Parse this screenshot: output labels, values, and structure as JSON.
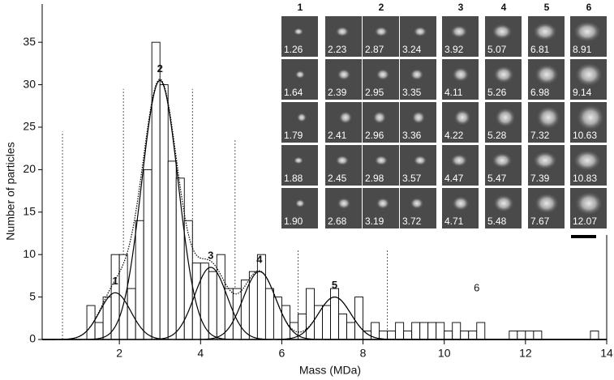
{
  "chart_data": {
    "type": "histogram",
    "xlabel": "Mass (MDa)",
    "ylabel": "Number of particles",
    "bins": [
      1.2,
      1.4,
      1.6,
      1.8,
      2.0,
      2.2,
      2.4,
      2.6,
      2.8,
      3.0,
      3.2,
      3.4,
      3.6,
      3.8,
      4.0,
      4.2,
      4.4,
      4.6,
      4.8,
      5.0,
      5.2,
      5.4,
      5.6,
      5.8,
      6.0,
      6.2,
      6.4,
      6.6,
      6.8,
      7.0,
      7.2,
      7.4,
      7.6,
      7.8,
      8.0,
      8.2,
      8.4,
      8.6,
      8.8,
      9.0,
      9.2,
      9.4,
      9.6,
      9.8,
      10.0,
      10.2,
      10.4,
      10.6,
      10.8,
      11.0,
      11.2,
      11.4,
      11.6,
      11.8,
      12.0,
      12.2,
      12.4,
      12.6,
      12.8,
      13.0,
      13.2,
      13.4,
      13.6,
      13.8
    ],
    "counts": [
      4,
      2,
      5,
      10,
      10,
      6,
      14,
      20,
      35,
      30,
      21,
      19,
      14,
      9,
      9,
      8,
      10,
      6,
      6,
      7,
      8,
      10,
      6,
      5,
      4,
      2,
      3,
      6,
      4,
      4,
      6,
      3,
      2,
      5,
      1,
      2,
      1,
      1,
      2,
      1,
      2,
      2,
      2,
      2,
      1,
      2,
      1,
      1,
      2,
      0,
      0,
      0,
      1,
      1,
      1,
      1,
      0,
      0,
      0,
      0,
      0,
      0,
      1
    ],
    "xlim": [
      0.1,
      14
    ],
    "ylim": [
      0,
      39.5
    ],
    "xticks": [
      2,
      4,
      6,
      8,
      10,
      12,
      14
    ],
    "yticks": [
      0,
      5,
      10,
      15,
      20,
      25,
      30,
      35
    ],
    "peaks": [
      {
        "label": "1",
        "center": 1.9,
        "height": 5.5,
        "sigma": 0.38
      },
      {
        "label": "2",
        "center": 3.0,
        "height": 30.5,
        "sigma": 0.45
      },
      {
        "label": "3",
        "center": 4.25,
        "height": 8.5,
        "sigma": 0.4
      },
      {
        "label": "4",
        "center": 5.45,
        "height": 8,
        "sigma": 0.4
      },
      {
        "label": "5",
        "center": 7.3,
        "height": 5,
        "sigma": 0.4
      }
    ],
    "annotations": [
      {
        "text": "6",
        "x": 10.8,
        "y": 6
      }
    ],
    "dividers": [
      {
        "x": 0.6,
        "y": 24.5
      },
      {
        "x": 2.1,
        "y": 29.5
      },
      {
        "x": 3.8,
        "y": 29.5
      },
      {
        "x": 4.85,
        "y": 23.5
      },
      {
        "x": 6.4,
        "y": 10.5
      },
      {
        "x": 8.6,
        "y": 10.5
      }
    ]
  },
  "gallery": {
    "columns": [
      {
        "label": "1",
        "masses": [
          [
            "1.26",
            "1.64",
            "1.79",
            "1.88",
            "1.90"
          ]
        ]
      },
      {
        "label": "2",
        "masses": [
          [
            "2.23",
            "2.39",
            "2.41",
            "2.45",
            "2.68"
          ],
          [
            "2.87",
            "2.95",
            "2.96",
            "2.98",
            "3.19"
          ],
          [
            "3.24",
            "3.35",
            "3.36",
            "3.57",
            "3.72"
          ]
        ]
      },
      {
        "label": "3",
        "masses": [
          [
            "3.92",
            "4.11",
            "4.22",
            "4.47",
            "4.71"
          ]
        ]
      },
      {
        "label": "4",
        "masses": [
          [
            "5.07",
            "5.26",
            "5.28",
            "5.47",
            "5.48"
          ]
        ]
      },
      {
        "label": "5",
        "masses": [
          [
            "6.81",
            "6.98",
            "7.32",
            "7.39",
            "7.67"
          ]
        ]
      },
      {
        "label": "6",
        "masses": [
          [
            "8.91",
            "9.14",
            "10.63",
            "10.83",
            "12.07"
          ]
        ]
      }
    ]
  }
}
